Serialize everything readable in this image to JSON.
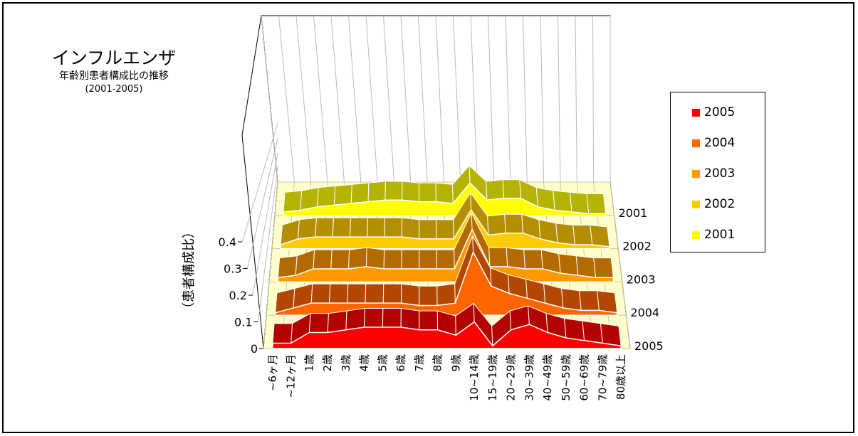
{
  "chart_data": {
    "type": "area",
    "title": "インフルエンザ",
    "subtitle": "年齢別患者構成比の推移",
    "period": "(2001-2005)",
    "ylabel": "（患者構成比）",
    "ylim": [
      0,
      0.4
    ],
    "yticks": [
      "0",
      "0.1",
      "0.2",
      "0.3",
      "0.4"
    ],
    "categories": [
      "~6ヶ月",
      "~12ヶ月",
      "1歳",
      "2歳",
      "3歳",
      "4歳",
      "5歳",
      "6歳",
      "7歳",
      "8歳",
      "9歳",
      "10~14歳",
      "15~19歳",
      "20~29歳",
      "30~39歳",
      "40~49歳",
      "50~59歳",
      "60~69歳",
      "70~79歳",
      "80歳以上"
    ],
    "grid": true,
    "series": [
      {
        "name": "2001",
        "color": "#ffff00",
        "values": [
          0.02,
          0.03,
          0.05,
          0.06,
          0.07,
          0.08,
          0.09,
          0.09,
          0.08,
          0.08,
          0.07,
          0.19,
          0.09,
          0.1,
          0.1,
          0.05,
          0.03,
          0.02,
          0.01,
          0.01
        ]
      },
      {
        "name": "2002",
        "color": "#ffcc00",
        "values": [
          0.02,
          0.05,
          0.06,
          0.06,
          0.06,
          0.06,
          0.06,
          0.06,
          0.05,
          0.05,
          0.05,
          0.2,
          0.07,
          0.08,
          0.08,
          0.05,
          0.03,
          0.02,
          0.02,
          0.01
        ]
      },
      {
        "name": "2003",
        "color": "#ff9900",
        "values": [
          0.02,
          0.03,
          0.06,
          0.06,
          0.06,
          0.07,
          0.06,
          0.06,
          0.06,
          0.06,
          0.06,
          0.24,
          0.07,
          0.07,
          0.06,
          0.06,
          0.04,
          0.03,
          0.02,
          0.02
        ]
      },
      {
        "name": "2004",
        "color": "#ff6600",
        "values": [
          0.01,
          0.03,
          0.05,
          0.05,
          0.05,
          0.05,
          0.05,
          0.05,
          0.04,
          0.04,
          0.05,
          0.26,
          0.12,
          0.09,
          0.07,
          0.05,
          0.03,
          0.02,
          0.02,
          0.01
        ]
      },
      {
        "name": "2005",
        "color": "#ff0000",
        "values": [
          0.02,
          0.02,
          0.06,
          0.06,
          0.07,
          0.08,
          0.08,
          0.08,
          0.07,
          0.07,
          0.05,
          0.1,
          0.01,
          0.07,
          0.09,
          0.06,
          0.04,
          0.03,
          0.02,
          0.01
        ]
      }
    ],
    "legend": {
      "placement": "right",
      "order": [
        "2005",
        "2004",
        "2003",
        "2002",
        "2001"
      ]
    }
  }
}
